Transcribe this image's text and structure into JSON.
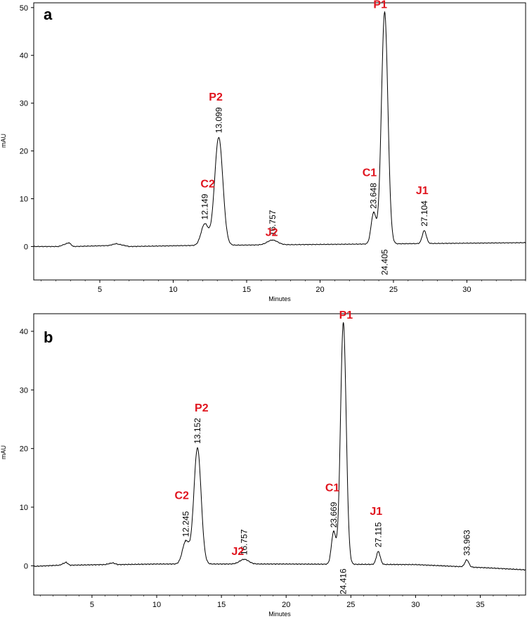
{
  "chart_data": [
    {
      "type": "line",
      "panel_label": "a",
      "xlabel": "Minutes",
      "ylabel": "mAU",
      "xlim": [
        0.5,
        34.0
      ],
      "ylim": [
        -7,
        51
      ],
      "x_ticks": [
        5,
        10,
        15,
        20,
        25,
        30
      ],
      "y_ticks": [
        0,
        10,
        20,
        30,
        40,
        50
      ],
      "baseline": [
        [
          1.2,
          0.0
        ],
        [
          2.2,
          0.0
        ],
        [
          2.9,
          0.8
        ],
        [
          3.2,
          0.0
        ],
        [
          5.6,
          0.2
        ],
        [
          6.1,
          0.6
        ],
        [
          6.4,
          0.4
        ],
        [
          7.0,
          0.0
        ],
        [
          11.0,
          0.2
        ],
        [
          34.0,
          0.8
        ]
      ],
      "peak_color": "#e0141e",
      "peaks": [
        {
          "name": "C2",
          "rt": "12.149",
          "x": 12.15,
          "height": 4.5,
          "width": 0.25
        },
        {
          "name": "P2",
          "rt": "13.099",
          "x": 13.1,
          "height": 22.6,
          "width": 0.28
        },
        {
          "name": "J2",
          "rt": "16.757",
          "x": 16.76,
          "height": 1.0,
          "width": 0.35
        },
        {
          "name": "C1",
          "rt": "23.648",
          "x": 23.65,
          "height": 6.5,
          "width": 0.17
        },
        {
          "name": "P1",
          "rt": "24.405",
          "x": 24.4,
          "height": 48.5,
          "width": 0.22
        },
        {
          "name": "J1",
          "rt": "27.104",
          "x": 27.1,
          "height": 2.7,
          "width": 0.14
        }
      ]
    },
    {
      "type": "line",
      "panel_label": "b",
      "xlabel": "Minutes",
      "ylabel": "mAU",
      "xlim": [
        0.5,
        38.5
      ],
      "ylim": [
        -5,
        43
      ],
      "x_ticks": [
        5,
        10,
        15,
        20,
        25,
        30,
        35
      ],
      "y_ticks": [
        0,
        10,
        20,
        30,
        40
      ],
      "baseline": [
        [
          0.5,
          -0.1
        ],
        [
          2.5,
          0.1
        ],
        [
          3.0,
          0.6
        ],
        [
          3.3,
          0.1
        ],
        [
          6.0,
          0.2
        ],
        [
          6.6,
          0.5
        ],
        [
          7.0,
          0.2
        ],
        [
          10.0,
          0.3
        ],
        [
          20.0,
          0.3
        ],
        [
          30.0,
          0.2
        ],
        [
          36.0,
          -0.4
        ],
        [
          38.5,
          -0.7
        ]
      ],
      "peak_color": "#e0141e",
      "peaks": [
        {
          "name": "C2",
          "rt": "12.245",
          "x": 12.25,
          "height": 3.9,
          "width": 0.26
        },
        {
          "name": "P2",
          "rt": "13.152",
          "x": 13.15,
          "height": 19.8,
          "width": 0.28
        },
        {
          "name": "J2",
          "rt": "16.757",
          "x": 16.76,
          "height": 0.8,
          "width": 0.35
        },
        {
          "name": "C1",
          "rt": "23.669",
          "x": 23.67,
          "height": 5.5,
          "width": 0.17
        },
        {
          "name": "P1",
          "rt": "24.416",
          "x": 24.42,
          "height": 41.2,
          "width": 0.22
        },
        {
          "name": "J1",
          "rt": "27.115",
          "x": 27.12,
          "height": 2.2,
          "width": 0.15
        },
        {
          "name": "",
          "rt": "33.963",
          "x": 33.96,
          "height": 1.2,
          "width": 0.15
        }
      ]
    }
  ]
}
